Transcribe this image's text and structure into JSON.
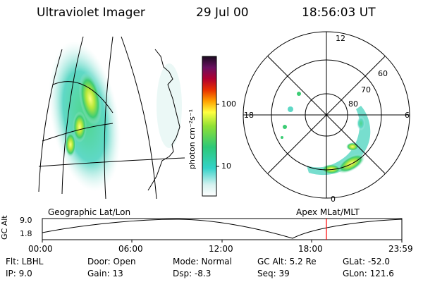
{
  "header": {
    "instrument": "Ultraviolet Imager",
    "date": "29 Jul 00",
    "time": "18:56:03 UT"
  },
  "colorbar": {
    "label": "photon cm⁻²s⁻¹",
    "ticks": [
      "100",
      "10"
    ]
  },
  "polar_plot": {
    "mlt_labels": [
      "12",
      "18",
      "6",
      "0"
    ],
    "lat_labels": [
      "60",
      "70",
      "80"
    ]
  },
  "map_label": "Geographic Lat/Lon",
  "apex_label": "Apex MLat/MLT",
  "altitude_plot": {
    "ylabel": "GC Alt",
    "y_ticks": [
      "9.0",
      "1.8"
    ],
    "time_ticks": [
      "00:00",
      "06:00",
      "12:00",
      "18:00",
      "23:59"
    ],
    "current_time_marker_color": "#ff0000"
  },
  "status": {
    "filter": "Flt: LBHL",
    "ip": "IP:  9.0",
    "door": "Door: Open",
    "gain": "Gain: 13",
    "mode": "Mode: Normal",
    "dsp": "Dsp:   -8.3",
    "gc_alt": "GC Alt: 5.2 Re",
    "seq": "Seq: 39",
    "glat": "GLat: -52.0",
    "glon": "GLon: 121.6"
  }
}
